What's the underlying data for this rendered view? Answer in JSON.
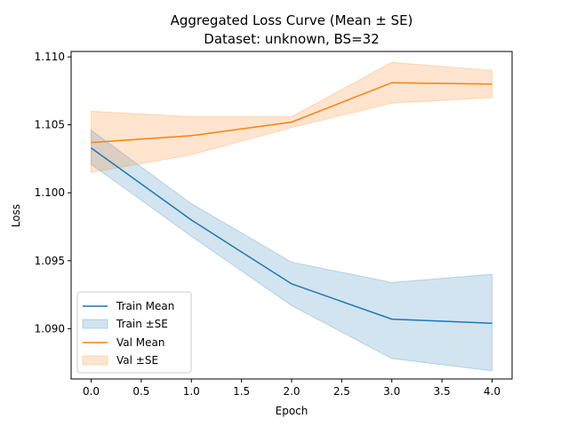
{
  "chart_data": {
    "type": "line",
    "title": "Aggregated Loss Curve (Mean ± SE)",
    "subtitle": "Dataset: unknown, BS=32",
    "xlabel": "Epoch",
    "ylabel": "Loss",
    "xlim": [
      -0.2,
      4.2
    ],
    "ylim": [
      1.0863,
      1.1104
    ],
    "xticks": [
      0.0,
      0.5,
      1.0,
      1.5,
      2.0,
      2.5,
      3.0,
      3.5,
      4.0
    ],
    "xtick_labels": [
      "0.0",
      "0.5",
      "1.0",
      "1.5",
      "2.0",
      "2.5",
      "3.0",
      "3.5",
      "4.0"
    ],
    "yticks": [
      1.09,
      1.095,
      1.1,
      1.105,
      1.11
    ],
    "ytick_labels": [
      "1.090",
      "1.095",
      "1.100",
      "1.105",
      "1.110"
    ],
    "grid": false,
    "legend_position": "lower-left",
    "x": [
      0,
      1,
      2,
      3,
      4
    ],
    "series": [
      {
        "name": "Train Mean",
        "band_name": "Train ±SE",
        "color": "#1f77b4",
        "band_color": "#1f77b4",
        "values": [
          1.1033,
          1.098,
          1.0933,
          1.0907,
          1.0904
        ],
        "lower": [
          1.1021,
          1.0968,
          1.0917,
          1.0878,
          1.0869
        ],
        "upper": [
          1.1046,
          1.0992,
          1.0949,
          1.0934,
          1.094
        ]
      },
      {
        "name": "Val Mean",
        "band_name": "Val ±SE",
        "color": "#ff7f0e",
        "band_color": "#ff7f0e",
        "values": [
          1.1037,
          1.1042,
          1.1052,
          1.1081,
          1.108
        ],
        "lower": [
          1.1015,
          1.1028,
          1.1048,
          1.1066,
          1.107
        ],
        "upper": [
          1.106,
          1.1056,
          1.1056,
          1.1096,
          1.109
        ]
      }
    ]
  }
}
